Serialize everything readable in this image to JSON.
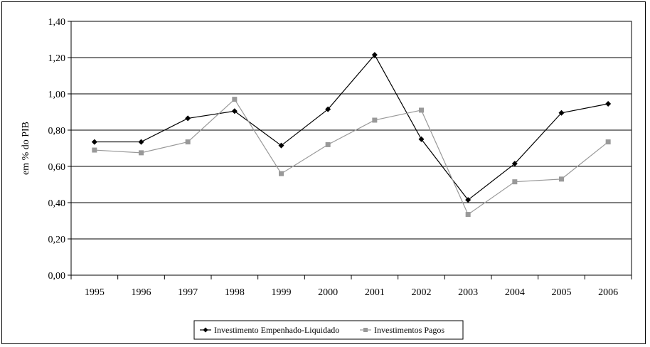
{
  "chart_data": {
    "type": "line",
    "title": "",
    "xlabel": "",
    "ylabel": "em % do PIB",
    "ylim": [
      0,
      1.4
    ],
    "yticks": [
      "0,00",
      "0,20",
      "0,40",
      "0,60",
      "0,80",
      "1,00",
      "1,20",
      "1,40"
    ],
    "categories": [
      "1995",
      "1996",
      "1997",
      "1998",
      "1999",
      "2000",
      "2001",
      "2002",
      "2003",
      "2004",
      "2005",
      "2006"
    ],
    "grid": true,
    "legend_position": "bottom",
    "series": [
      {
        "name": "Investimento Empenhado-Liquidado",
        "color": "#000000",
        "marker": "diamond",
        "values": [
          0.735,
          0.735,
          0.865,
          0.905,
          0.715,
          0.915,
          1.215,
          0.75,
          0.415,
          0.615,
          0.895,
          0.945
        ]
      },
      {
        "name": "Investimentos Pagos",
        "color": "#999999",
        "marker": "square",
        "values": [
          0.69,
          0.675,
          0.735,
          0.97,
          0.56,
          0.72,
          0.855,
          0.91,
          0.335,
          0.515,
          0.53,
          0.735
        ]
      }
    ]
  }
}
